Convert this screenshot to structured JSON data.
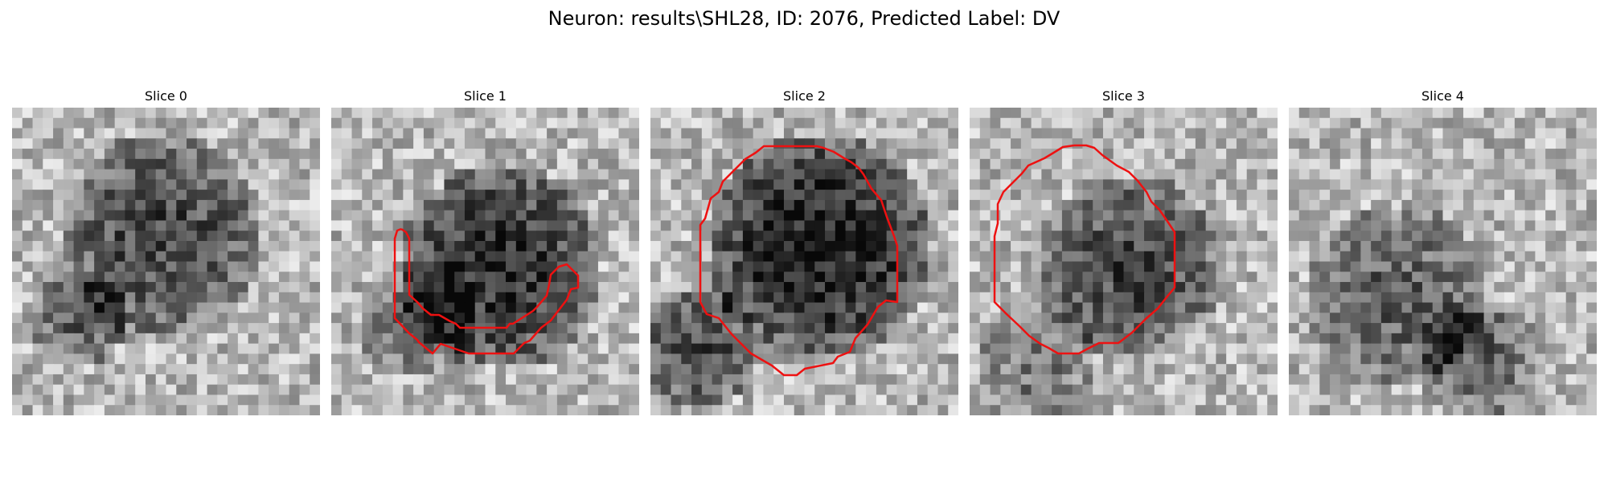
{
  "figure": {
    "title": "Neuron: results\\SHL28, ID: 2076, Predicted Label: DV"
  },
  "colors": {
    "contour": "#ee1111",
    "background": "#ffffff"
  },
  "slices": [
    {
      "title": "Slice 0",
      "has_contour": false
    },
    {
      "title": "Slice 1",
      "has_contour": true
    },
    {
      "title": "Slice 2",
      "has_contour": true
    },
    {
      "title": "Slice 3",
      "has_contour": true
    },
    {
      "title": "Slice 4",
      "has_contour": false
    }
  ]
}
